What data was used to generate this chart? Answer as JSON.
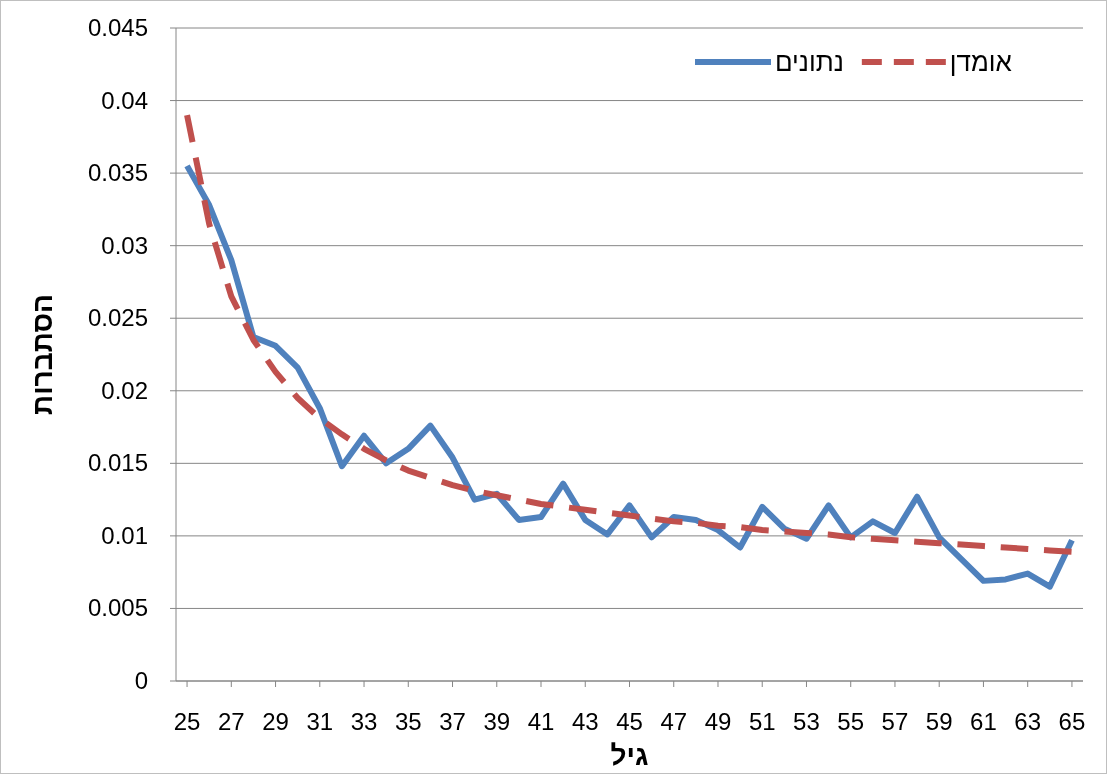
{
  "chart_data": {
    "type": "line",
    "xlabel": "גיל",
    "ylabel": "הסתברות",
    "x": [
      25,
      26,
      27,
      28,
      29,
      30,
      31,
      32,
      33,
      34,
      35,
      36,
      37,
      38,
      39,
      40,
      41,
      42,
      43,
      44,
      45,
      46,
      47,
      48,
      49,
      50,
      51,
      52,
      53,
      54,
      55,
      56,
      57,
      58,
      59,
      60,
      61,
      62,
      63,
      64,
      65
    ],
    "series": [
      {
        "name": "נתונים",
        "color": "#4f81bd",
        "line_style": "solid",
        "values": [
          0.0355,
          0.0328,
          0.029,
          0.0237,
          0.0231,
          0.0216,
          0.0188,
          0.0148,
          0.0169,
          0.015,
          0.016,
          0.0176,
          0.0154,
          0.0125,
          0.0129,
          0.0111,
          0.0113,
          0.0136,
          0.0111,
          0.0101,
          0.0121,
          0.0099,
          0.0113,
          0.0111,
          0.0104,
          0.0092,
          0.012,
          0.0105,
          0.0098,
          0.0121,
          0.0099,
          0.011,
          0.0102,
          0.0127,
          0.0099,
          0.0084,
          0.0069,
          0.007,
          0.0074,
          0.0065,
          0.0097
        ]
      },
      {
        "name": "אומדן",
        "color": "#c0504d",
        "line_style": "dashed",
        "values": [
          0.039,
          0.0315,
          0.0265,
          0.0235,
          0.0213,
          0.0195,
          0.0181,
          0.017,
          0.016,
          0.0152,
          0.0145,
          0.014,
          0.0135,
          0.0131,
          0.0128,
          0.0125,
          0.0122,
          0.012,
          0.0118,
          0.0116,
          0.0114,
          0.0112,
          0.011,
          0.0109,
          0.0107,
          0.0106,
          0.0104,
          0.0103,
          0.0102,
          0.0101,
          0.0099,
          0.0098,
          0.0097,
          0.0096,
          0.0095,
          0.0094,
          0.0093,
          0.0092,
          0.0091,
          0.009,
          0.0089
        ]
      }
    ],
    "xlim": [
      24.5,
      65.5
    ],
    "xticks": [
      25,
      27,
      29,
      31,
      33,
      35,
      37,
      39,
      41,
      43,
      45,
      47,
      49,
      51,
      53,
      55,
      57,
      59,
      61,
      63,
      65
    ],
    "ylim": [
      0,
      0.045
    ],
    "yticks": [
      0,
      0.005,
      0.01,
      0.015,
      0.02,
      0.025,
      0.03,
      0.035,
      0.04,
      0.045
    ],
    "grid": "y",
    "legend": "top right"
  }
}
